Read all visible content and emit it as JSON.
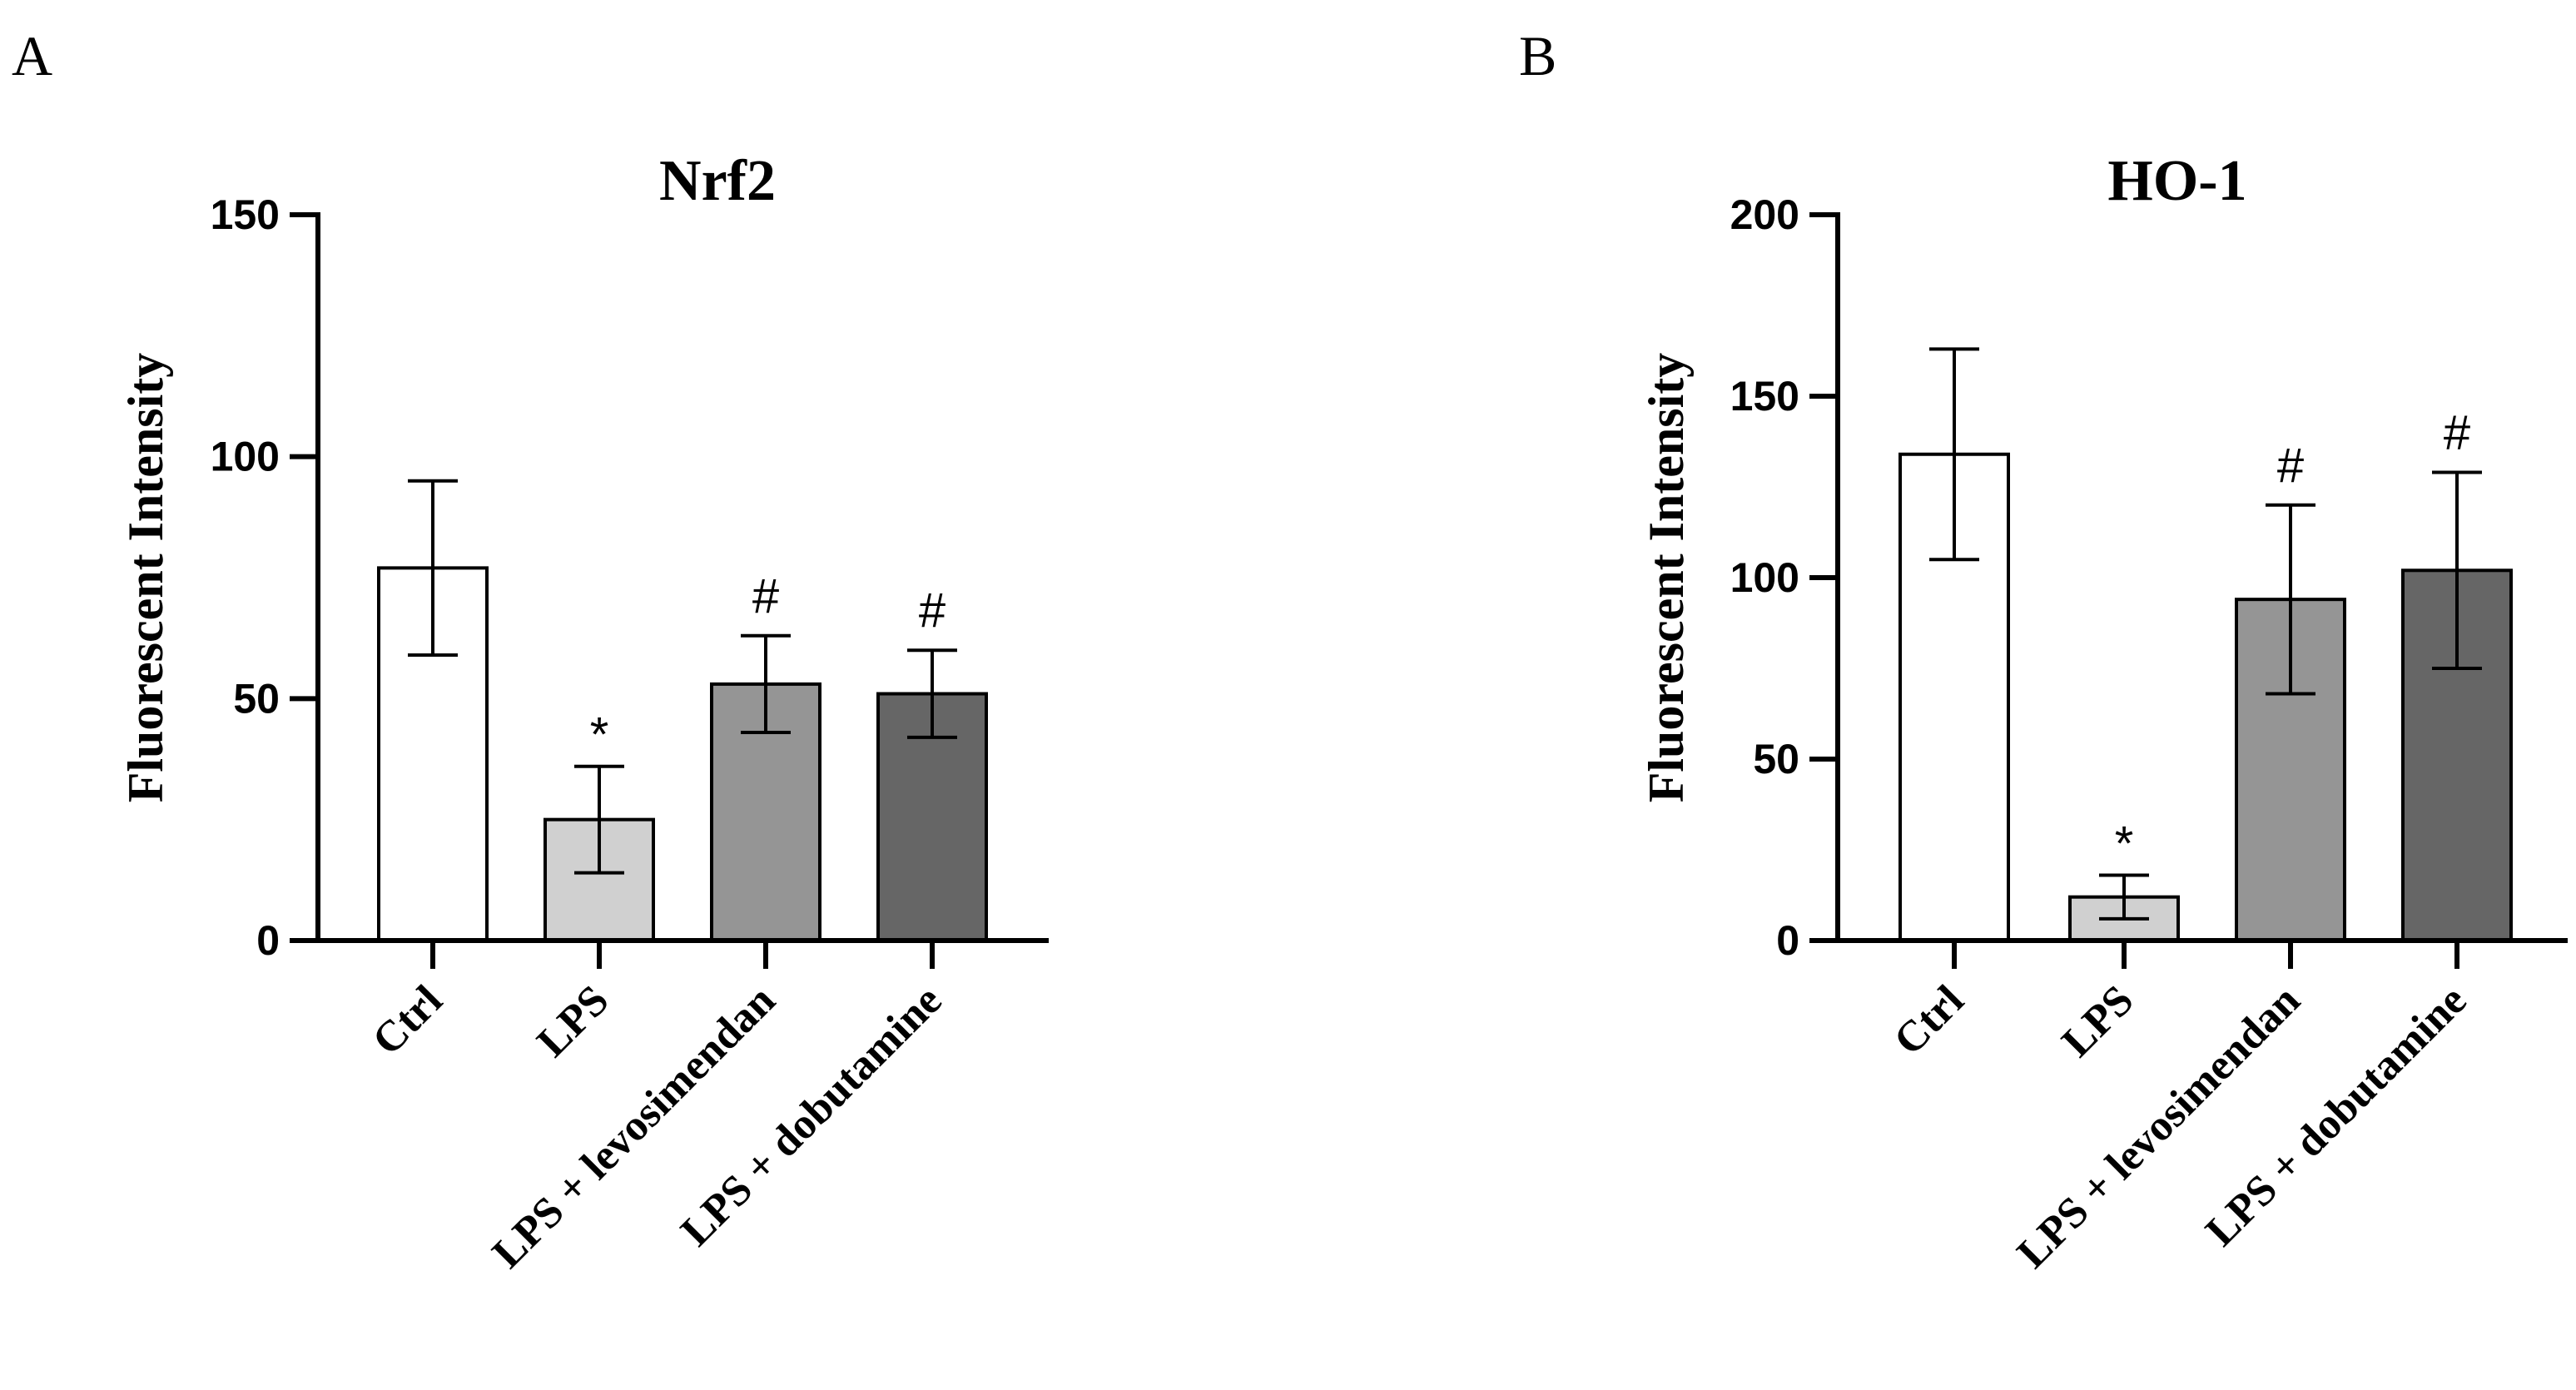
{
  "chart_data": [
    {
      "type": "bar",
      "panel": "A",
      "title": "Nrf2",
      "xlabel": "",
      "ylabel": "Fluorescent Intensity",
      "ylim": [
        0,
        150
      ],
      "yticks": [
        0,
        50,
        100,
        150
      ],
      "grid": false,
      "categories": [
        "Ctrl",
        "LPS",
        "LPS + levosimendan",
        "LPS + dobutamine"
      ],
      "values": [
        77,
        25,
        53,
        51
      ],
      "errors": [
        18,
        11,
        10,
        9
      ],
      "significance": [
        "",
        "*",
        "#",
        "#"
      ],
      "bar_colors": [
        "#ffffff",
        "#d0d0d0",
        "#959595",
        "#666666"
      ]
    },
    {
      "type": "bar",
      "panel": "B",
      "title": "HO-1",
      "xlabel": "",
      "ylabel": "Fluorescent Intensity",
      "ylim": [
        0,
        200
      ],
      "yticks": [
        0,
        50,
        100,
        150,
        200
      ],
      "grid": false,
      "categories": [
        "Ctrl",
        "LPS",
        "LPS + levosimendan",
        "LPS + dobutamine"
      ],
      "values": [
        134,
        12,
        94,
        102
      ],
      "errors": [
        29,
        6,
        26,
        27
      ],
      "significance": [
        "",
        "*",
        "#",
        "#"
      ],
      "bar_colors": [
        "#ffffff",
        "#d0d0d0",
        "#959595",
        "#666666"
      ]
    }
  ]
}
